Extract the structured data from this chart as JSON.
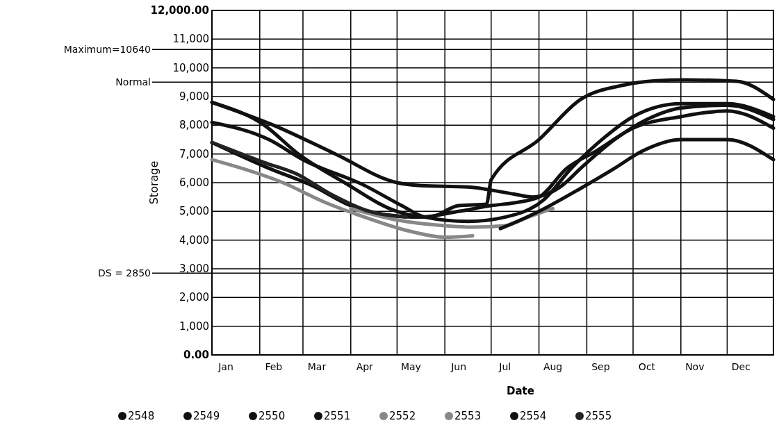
{
  "chart_data": {
    "type": "line",
    "xlabel": "Date",
    "ylabel": "Storage",
    "xlim": [
      "--01-01",
      "--12-31"
    ],
    "xticks": [
      {
        "value": "--01-10",
        "label": "Jan"
      },
      {
        "value": "--02-10",
        "label": "Feb"
      },
      {
        "value": "--03-10",
        "label": "Mar"
      },
      {
        "value": "--04-10",
        "label": "Apr"
      },
      {
        "value": "--05-10",
        "label": "May"
      },
      {
        "value": "--06-10",
        "label": "Jun"
      },
      {
        "value": "--07-10",
        "label": "Jul"
      },
      {
        "value": "--08-10",
        "label": "Aug"
      },
      {
        "value": "--09-10",
        "label": "Sep"
      },
      {
        "value": "--10-10",
        "label": "Oct"
      },
      {
        "value": "--11-10",
        "label": "Nov"
      },
      {
        "value": "--12-10",
        "label": "Dec"
      }
    ],
    "ylim": [
      0,
      12000
    ],
    "yticks": [
      {
        "value": 0,
        "label": "0.00"
      },
      {
        "value": 1000,
        "label": "1,000"
      },
      {
        "value": 2000,
        "label": "2,000"
      },
      {
        "value": 3000,
        "label": "3,000"
      },
      {
        "value": 4000,
        "label": "4,000"
      },
      {
        "value": 5000,
        "label": "5,000"
      },
      {
        "value": 6000,
        "label": "6,000"
      },
      {
        "value": 7000,
        "label": "7,000"
      },
      {
        "value": 8000,
        "label": "8,000"
      },
      {
        "value": 9000,
        "label": "9,000"
      },
      {
        "value": 10000,
        "label": "10,000"
      },
      {
        "value": 11000,
        "label": "11,000"
      },
      {
        "value": 12000,
        "label": "12,000.00"
      }
    ],
    "grid": true,
    "legend": "bottom",
    "marker": "none",
    "line_style": "solid",
    "ref_lines": [
      {
        "axis": "y",
        "value": 10640,
        "label": "Maximum=10640"
      },
      {
        "axis": "y",
        "value": 9500,
        "label": "Normal"
      },
      {
        "axis": "y",
        "value": 2850,
        "label": "DS = 2850"
      }
    ],
    "series": [
      {
        "name": "2548",
        "color": "#111111",
        "x": [
          "--01-01",
          "--02-10",
          "--03-22",
          "--05-01",
          "--05-16",
          "--06-16",
          "--07-16",
          "--07-28",
          "--08-16",
          "--08-28",
          "--09-19",
          "--10-10",
          "--11-01",
          "--12-01",
          "--12-31"
        ],
        "values": [
          8800,
          8000,
          7000,
          6000,
          5900,
          5850,
          5600,
          5500,
          5900,
          6500,
          7500,
          8200,
          8600,
          8700,
          8200
        ]
      },
      {
        "name": "2549",
        "color": "#111111",
        "x": [
          "--01-01",
          "--02-04",
          "--02-26",
          "--03-28",
          "--05-01",
          "--05-22",
          "--06-10",
          "--06-28",
          "--07-01",
          "--08-01",
          "--08-28",
          "--09-25",
          "--10-16",
          "--11-04",
          "--12-07",
          "--12-31"
        ],
        "values": [
          8800,
          8000,
          7000,
          6000,
          5000,
          4800,
          5200,
          5250,
          6100,
          7500,
          8900,
          9400,
          9550,
          9580,
          9530,
          8900
        ]
      },
      {
        "name": "2550",
        "color": "#111111",
        "x": [
          "--01-01",
          "--02-07",
          "--03-01",
          "--04-10",
          "--05-04",
          "--05-19",
          "--06-16",
          "--07-10",
          "--08-04",
          "--08-22",
          "--09-13",
          "--10-01",
          "--11-01",
          "--12-01",
          "--12-31"
        ],
        "values": [
          8100,
          7500,
          6800,
          5900,
          5200,
          4800,
          4650,
          4800,
          5400,
          6500,
          7600,
          8300,
          8750,
          8750,
          8300
        ]
      },
      {
        "name": "2551",
        "color": "#111111",
        "x": [
          "--01-01",
          "--02-07",
          "--03-07",
          "--04-01",
          "--04-22",
          "--05-16",
          "--06-10",
          "--07-01",
          "--07-16",
          "--08-01",
          "--08-19",
          "--09-07",
          "--10-01",
          "--11-01",
          "--12-01",
          "--12-31"
        ],
        "values": [
          7400,
          6500,
          5900,
          5200,
          4900,
          4800,
          5000,
          5200,
          5300,
          5500,
          6500,
          7100,
          7900,
          8300,
          8500,
          7900
        ]
      },
      {
        "name": "2552",
        "color": "#888888",
        "x": [
          "--01-01",
          "--02-16",
          "--03-16",
          "--04-10",
          "--05-10",
          "--06-01",
          "--06-19"
        ],
        "values": [
          6800,
          6000,
          5300,
          4800,
          4300,
          4100,
          4150
        ]
      },
      {
        "name": "2553",
        "color": "#888888",
        "x": [
          "--04-01",
          "--05-01",
          "--06-01",
          "--06-19",
          "--07-10",
          "--07-25",
          "--08-10"
        ],
        "values": [
          5100,
          4700,
          4500,
          4450,
          4500,
          4800,
          5100
        ]
      },
      {
        "name": "2554",
        "color": "#111111",
        "x": [
          "--07-07",
          "--08-01",
          "--08-28",
          "--09-19",
          "--10-07",
          "--11-01",
          "--12-01",
          "--12-31"
        ],
        "values": [
          4400,
          5000,
          5800,
          6500,
          7100,
          7500,
          7500,
          6800
        ]
      },
      {
        "name": "2555",
        "color": "#222222",
        "x": [
          "--01-01",
          "--02-04",
          "--02-25",
          "--03-19",
          "--04-13",
          "--05-07"
        ],
        "values": [
          7400,
          6700,
          6300,
          5600,
          5000,
          4800
        ]
      }
    ]
  }
}
